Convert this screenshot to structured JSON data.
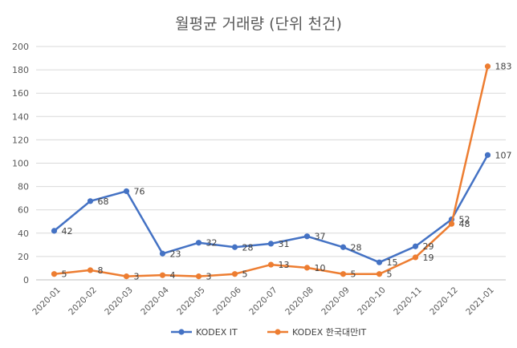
{
  "chart_data": {
    "type": "line",
    "title": "월평균 거래량 (단위 천건)",
    "xlabel": "",
    "ylabel": "",
    "ylim": [
      0,
      200
    ],
    "yticks": [
      0,
      20,
      40,
      60,
      80,
      100,
      120,
      140,
      160,
      180,
      200
    ],
    "grid": true,
    "legend_position": "bottom",
    "categories": [
      "2020-01",
      "2020-02",
      "2020-03",
      "2020-04",
      "2020-05",
      "2020-06",
      "2020-07",
      "2020-08",
      "2020-09",
      "2020-10",
      "2020-11",
      "2020-12",
      "2021-01"
    ],
    "series": [
      {
        "name": "KODEX IT",
        "color": "#4472C4",
        "values": [
          42,
          67.5,
          76,
          22.5,
          31.8,
          28,
          31,
          37.3,
          28,
          15,
          28.7,
          51.8,
          107
        ],
        "labels": [
          "42",
          "68",
          "76",
          "23",
          "32",
          "28",
          "31",
          "37",
          "28",
          "15",
          "29",
          "52",
          "107"
        ]
      },
      {
        "name": "KODEX 한국대만IT",
        "color": "#ED7D31",
        "values": [
          5,
          8.3,
          3,
          4,
          3,
          5,
          13,
          10.4,
          5,
          5,
          19.3,
          48,
          183
        ],
        "labels": [
          "5",
          "8",
          "3",
          "4",
          "3",
          "5",
          "13",
          "10",
          "5",
          "5",
          "19",
          "48",
          "183"
        ]
      }
    ]
  }
}
